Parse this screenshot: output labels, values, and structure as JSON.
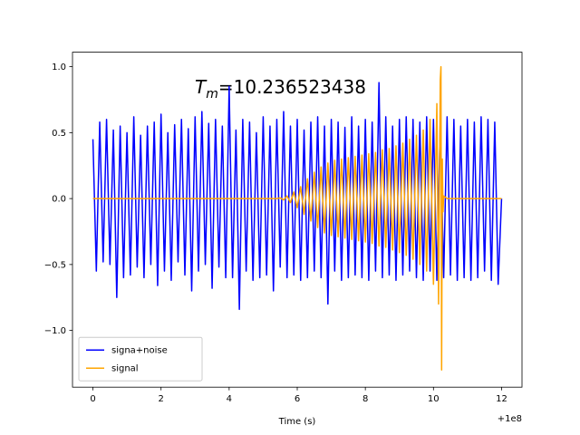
{
  "chart_data": {
    "type": "line",
    "annotation": {
      "symbol": "T",
      "subscript": "m",
      "text": "=10.236523438"
    },
    "x_label": "Time (s)",
    "x_offset_label": "+1e8",
    "xlim": [
      -0.6,
      12.6
    ],
    "ylim": [
      -1.43,
      1.11
    ],
    "xticks": [
      0,
      2,
      4,
      6,
      8,
      10,
      12
    ],
    "yticks": [
      {
        "value": -1,
        "label": "−1.0"
      },
      {
        "value": -0.5,
        "label": "−0.5"
      },
      {
        "value": 0,
        "label": "0.0"
      },
      {
        "value": 0.5,
        "label": "0.5"
      },
      {
        "value": 1,
        "label": "1.0"
      }
    ],
    "legend": "lower left",
    "series": [
      {
        "name": "signa+noise",
        "color": "#0000ff",
        "x": [
          0,
          0.1,
          0.2,
          0.3,
          0.4,
          0.5,
          0.6,
          0.7,
          0.8,
          0.9,
          1,
          1.1,
          1.2,
          1.3,
          1.4,
          1.5,
          1.6,
          1.7,
          1.8,
          1.9,
          2,
          2.1,
          2.2,
          2.3,
          2.4,
          2.5,
          2.6,
          2.7,
          2.8,
          2.9,
          3,
          3.1,
          3.2,
          3.3,
          3.4,
          3.5,
          3.6,
          3.7,
          3.8,
          3.9,
          4,
          4.1,
          4.2,
          4.3,
          4.4,
          4.5,
          4.6,
          4.7,
          4.8,
          4.9,
          5,
          5.1,
          5.2,
          5.3,
          5.4,
          5.5,
          5.6,
          5.7,
          5.8,
          5.9,
          6,
          6.1,
          6.2,
          6.3,
          6.4,
          6.5,
          6.6,
          6.7,
          6.8,
          6.9,
          7,
          7.1,
          7.2,
          7.3,
          7.4,
          7.5,
          7.6,
          7.7,
          7.8,
          7.9,
          8,
          8.1,
          8.2,
          8.3,
          8.4,
          8.5,
          8.6,
          8.7,
          8.8,
          8.9,
          9,
          9.1,
          9.2,
          9.3,
          9.4,
          9.5,
          9.6,
          9.7,
          9.8,
          9.9,
          10,
          10.1,
          10.2,
          10.3,
          10.4,
          10.5,
          10.6,
          10.7,
          10.8,
          10.9,
          11,
          11.1,
          11.2,
          11.3,
          11.4,
          11.5,
          11.6,
          11.7,
          11.8,
          11.9,
          12
        ],
        "values": [
          0.45,
          -0.55,
          0.58,
          -0.48,
          0.6,
          -0.5,
          0.52,
          -0.75,
          0.55,
          -0.6,
          0.5,
          -0.58,
          0.62,
          -0.52,
          0.48,
          -0.6,
          0.55,
          -0.5,
          0.58,
          -0.66,
          0.64,
          -0.55,
          0.5,
          -0.62,
          0.56,
          -0.48,
          0.6,
          -0.58,
          0.53,
          -0.7,
          0.62,
          -0.55,
          0.66,
          -0.5,
          0.57,
          -0.68,
          0.6,
          -0.52,
          0.55,
          -0.6,
          0.85,
          -0.6,
          0.52,
          -0.84,
          0.6,
          -0.55,
          0.58,
          -0.62,
          0.5,
          -0.6,
          0.62,
          -0.58,
          0.55,
          -0.7,
          0.6,
          -0.52,
          0.66,
          -0.6,
          0.55,
          -0.58,
          0.6,
          -0.62,
          0.52,
          -0.6,
          0.58,
          -0.55,
          0.62,
          -0.6,
          0.55,
          -0.8,
          0.6,
          -0.55,
          0.58,
          -0.62,
          0.54,
          -0.6,
          0.62,
          -0.58,
          0.55,
          -0.6,
          0.6,
          -0.62,
          0.58,
          -0.55,
          0.88,
          -0.6,
          0.62,
          -0.58,
          0.55,
          -0.62,
          0.6,
          -0.58,
          0.62,
          -0.55,
          0.6,
          -0.6,
          0.58,
          -0.62,
          0.62,
          -0.55,
          0.6,
          -0.62,
          0.58,
          -0.6,
          0.62,
          -0.58,
          0.6,
          -0.62,
          0.55,
          -0.6,
          0.6,
          -0.62,
          0.58,
          -0.6,
          0.62,
          -0.55,
          0.6,
          -0.62,
          0.58,
          -0.65,
          0
        ]
      },
      {
        "name": "signal",
        "color": "#ffa500",
        "x": [
          0,
          5.4,
          5.5,
          5.6,
          5.7,
          5.8,
          5.9,
          6,
          6.1,
          6.2,
          6.3,
          6.4,
          6.5,
          6.6,
          6.7,
          6.8,
          6.9,
          7,
          7.1,
          7.2,
          7.3,
          7.4,
          7.5,
          7.6,
          7.7,
          7.8,
          7.9,
          8,
          8.1,
          8.2,
          8.3,
          8.4,
          8.5,
          8.6,
          8.7,
          8.8,
          8.9,
          9,
          9.1,
          9.2,
          9.3,
          9.4,
          9.5,
          9.6,
          9.7,
          9.8,
          9.9,
          10,
          10.1,
          10.15,
          10.2,
          10.22,
          10.24,
          10.26,
          10.28,
          10.3,
          10.4,
          12
        ],
        "values": [
          0,
          0,
          0.005,
          -0.01,
          0.02,
          -0.03,
          0.05,
          -0.07,
          0.09,
          -0.12,
          0.15,
          -0.17,
          0.2,
          -0.22,
          0.24,
          -0.26,
          0.27,
          -0.28,
          0.29,
          -0.29,
          0.3,
          -0.3,
          0.31,
          -0.31,
          0.32,
          -0.32,
          0.33,
          -0.33,
          0.34,
          -0.34,
          0.35,
          -0.36,
          0.37,
          -0.37,
          0.38,
          -0.39,
          0.4,
          -0.41,
          0.42,
          -0.43,
          0.45,
          -0.46,
          0.48,
          -0.5,
          0.52,
          -0.55,
          0.6,
          -0.65,
          0.72,
          -0.8,
          0.9,
          1,
          -1.3,
          0.3,
          -0.1,
          0.02,
          0,
          0
        ]
      }
    ]
  }
}
